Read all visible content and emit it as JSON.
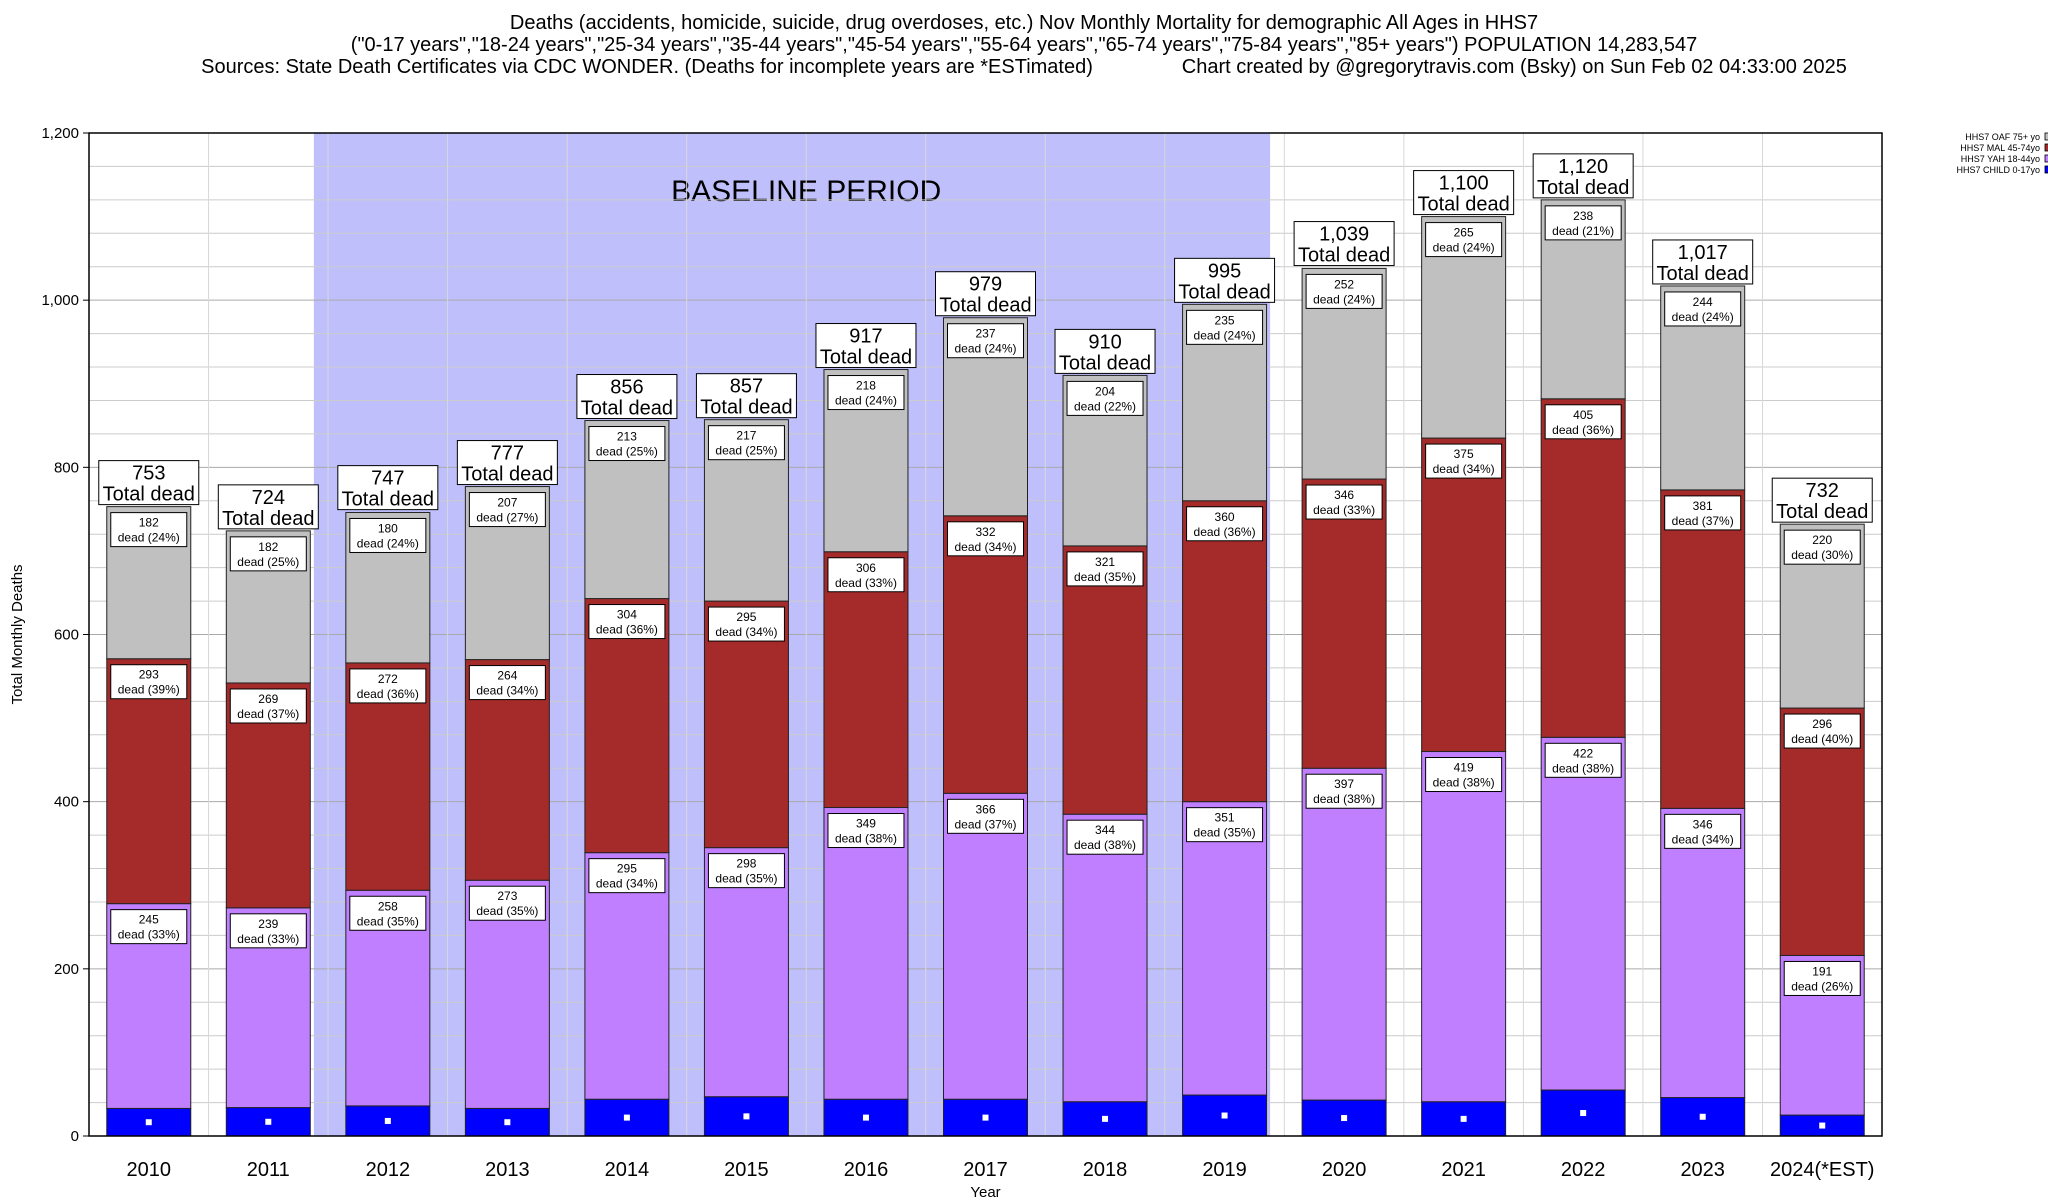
{
  "title": {
    "line1": "Deaths (accidents, homicide, suicide, drug overdoses, etc.) Nov Monthly Mortality for demographic All Ages in HHS7",
    "line2": "(\"0-17 years\",\"18-24 years\",\"25-34 years\",\"35-44 years\",\"45-54 years\",\"55-64 years\",\"65-74 years\",\"75-84 years\",\"85+ years\") POPULATION 14,283,547",
    "line3": "Sources: State Death Certificates via CDC WONDER. (Deaths for incomplete years are *ESTimated)                Chart created by @gregorytravis.com (Bsky) on Sun Feb 02 04:33:00 2025"
  },
  "chart_data": {
    "type": "bar",
    "stacked": true,
    "xlabel": "Year",
    "ylabel": "Total Monthly Deaths",
    "ylim": [
      0,
      1200
    ],
    "ytick_labels": [
      "0",
      "200",
      "400",
      "600",
      "800",
      "1,000",
      "1,200"
    ],
    "ytick_values": [
      0,
      200,
      400,
      600,
      800,
      1000,
      1200
    ],
    "grid": true,
    "legend_placement": "top-right",
    "baseline_annotation": {
      "label": "BASELINE PERIOD",
      "from": "2012",
      "to": "2019",
      "color": "#bfbffc"
    },
    "categories": [
      "2010",
      "2011",
      "2012",
      "2013",
      "2014",
      "2015",
      "2016",
      "2017",
      "2018",
      "2019",
      "2020",
      "2021",
      "2022",
      "2023",
      "2024(*EST)"
    ],
    "totals": [
      753,
      724,
      747,
      777,
      856,
      857,
      917,
      979,
      910,
      995,
      1039,
      1100,
      1120,
      1017,
      732
    ],
    "total_labels": [
      "753",
      "724",
      "747",
      "777",
      "856",
      "857",
      "917",
      "979",
      "910",
      "995",
      "1,039",
      "1,100",
      "1,120",
      "1,017",
      "732"
    ],
    "total_suffix": "Total dead",
    "series": [
      {
        "name": "HHS7 CHILD 0-17yo",
        "color": "#0000ff",
        "values": [
          33,
          34,
          36,
          33,
          44,
          47,
          44,
          44,
          41,
          49,
          43,
          41,
          55,
          46,
          25
        ]
      },
      {
        "name": "HHS7 YAH 18-44yo",
        "color": "#bf7fff",
        "values": [
          245,
          239,
          258,
          273,
          295,
          298,
          349,
          366,
          344,
          351,
          397,
          419,
          422,
          346,
          191
        ],
        "labels": [
          "dead (33%)",
          "dead (33%)",
          "dead (35%)",
          "dead (35%)",
          "dead (34%)",
          "dead (35%)",
          "dead (38%)",
          "dead (37%)",
          "dead (38%)",
          "dead (35%)",
          "dead (38%)",
          "dead (38%)",
          "dead (38%)",
          "dead (34%)",
          "dead (26%)"
        ]
      },
      {
        "name": "HHS7 MAL 45-74yo",
        "color": "#a52a2a",
        "values": [
          293,
          269,
          272,
          264,
          304,
          295,
          306,
          332,
          321,
          360,
          346,
          375,
          405,
          381,
          296
        ],
        "labels": [
          "dead (39%)",
          "dead (37%)",
          "dead (36%)",
          "dead (34%)",
          "dead (36%)",
          "dead (34%)",
          "dead (33%)",
          "dead (34%)",
          "dead (35%)",
          "dead (36%)",
          "dead (33%)",
          "dead (34%)",
          "dead (36%)",
          "dead (37%)",
          "dead (40%)"
        ]
      },
      {
        "name": "HHS7 OAF 75+ yo",
        "color": "#c0c0c0",
        "values": [
          182,
          182,
          180,
          207,
          213,
          217,
          218,
          237,
          204,
          235,
          252,
          265,
          238,
          244,
          220
        ],
        "labels": [
          "dead (24%)",
          "dead (25%)",
          "dead (24%)",
          "dead (27%)",
          "dead (25%)",
          "dead (25%)",
          "dead (24%)",
          "dead (24%)",
          "dead (22%)",
          "dead (24%)",
          "dead (24%)",
          "dead (24%)",
          "dead (21%)",
          "dead (24%)",
          "dead (30%)"
        ]
      }
    ],
    "legend": [
      "HHS7 OAF 75+ yo",
      "HHS7 MAL 45-74yo",
      "HHS7 YAH 18-44yo",
      "HHS7 CHILD 0-17yo"
    ]
  }
}
